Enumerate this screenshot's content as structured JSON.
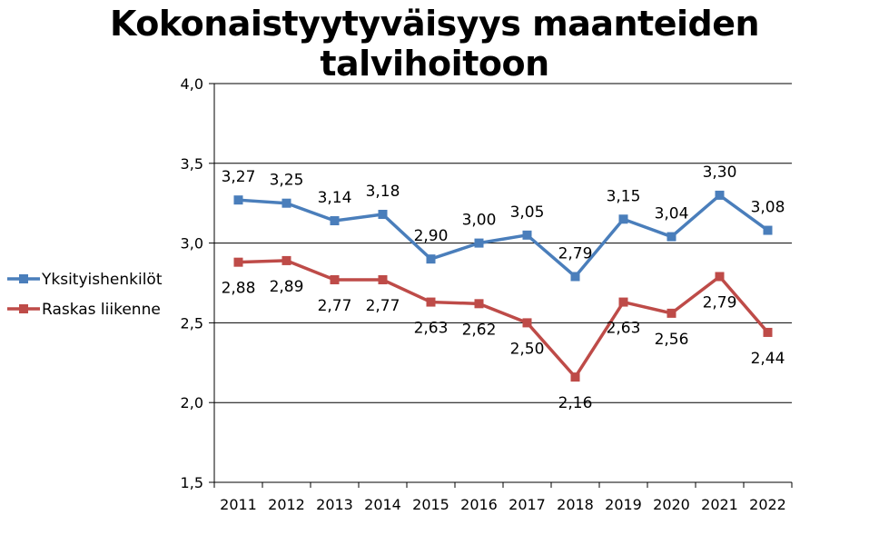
{
  "chart_data": {
    "type": "line",
    "title": "Kokonaistyytyväisyys maanteiden talvihoitoon",
    "xlabel": "",
    "ylabel": "",
    "ylim": [
      1.5,
      4.0
    ],
    "yticks": [
      "1,5",
      "2,0",
      "2,5",
      "3,0",
      "3,5",
      "4,0"
    ],
    "ytick_values": [
      1.5,
      2.0,
      2.5,
      3.0,
      3.5,
      4.0
    ],
    "grid": true,
    "legend_position": "left",
    "categories": [
      "2011",
      "2012",
      "2013",
      "2014",
      "2015",
      "2016",
      "2017",
      "2018",
      "2019",
      "2020",
      "2021",
      "2022"
    ],
    "series": [
      {
        "name": "Yksityishenkilöt",
        "color": "#4a7ebb",
        "label_pos": "above",
        "values": [
          3.27,
          3.25,
          3.14,
          3.18,
          2.9,
          3.0,
          3.05,
          2.79,
          3.15,
          3.04,
          3.3,
          3.08
        ],
        "labels": [
          "3,27",
          "3,25",
          "3,14",
          "3,18",
          "2,90",
          "3,00",
          "3,05",
          "2,79",
          "3,15",
          "3,04",
          "3,30",
          "3,08"
        ]
      },
      {
        "name": "Raskas liikenne",
        "color": "#be4b48",
        "label_pos": "below",
        "values": [
          2.88,
          2.89,
          2.77,
          2.77,
          2.63,
          2.62,
          2.5,
          2.16,
          2.63,
          2.56,
          2.79,
          2.44
        ],
        "labels": [
          "2,88",
          "2,89",
          "2,77",
          "2,77",
          "2,63",
          "2,62",
          "2,50",
          "2,16",
          "2,63",
          "2,56",
          "2,79",
          "2,44"
        ]
      }
    ]
  }
}
